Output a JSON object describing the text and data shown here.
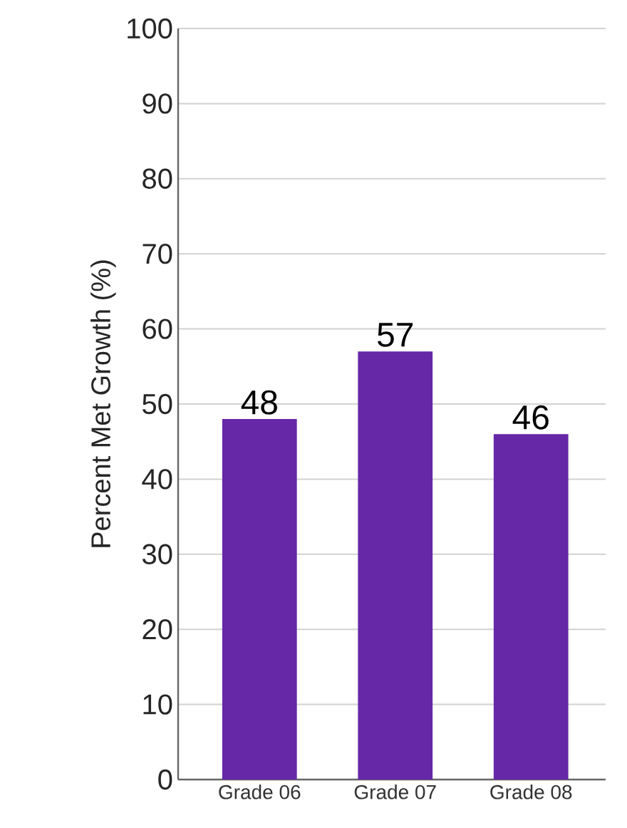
{
  "chart_data": {
    "type": "bar",
    "ylabel": "Percent Met Growth (%)",
    "categories": [
      "Grade 06",
      "Grade 07",
      "Grade 08"
    ],
    "values": [
      48,
      57,
      46
    ],
    "color": "#6628a6",
    "ylim": [
      0,
      100
    ],
    "yticks": [
      0,
      10,
      20,
      30,
      40,
      50,
      60,
      70,
      80,
      90,
      100
    ],
    "grid": "y",
    "data_labels": true
  }
}
